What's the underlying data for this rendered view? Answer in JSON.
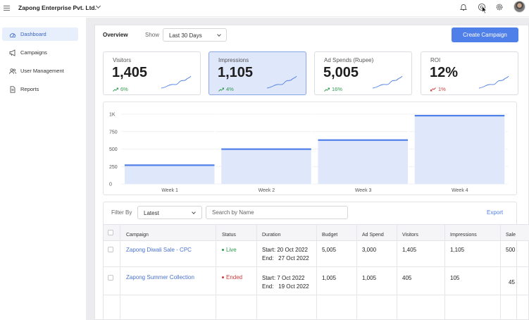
{
  "header": {
    "company": "Zapong Enterprise Pvt. Ltd."
  },
  "sidebar": {
    "items": [
      {
        "label": "Dashboard",
        "icon": "dashboard-gauge-icon",
        "active": true
      },
      {
        "label": "Campaigns",
        "icon": "megaphone-icon",
        "active": false
      },
      {
        "label": "User Management",
        "icon": "users-icon",
        "active": false
      },
      {
        "label": "Reports",
        "icon": "document-icon",
        "active": false
      }
    ]
  },
  "toolbar": {
    "tab": "Overview",
    "show_label": "Show",
    "period": "Last 30 Days",
    "create_button": "Create Campaign"
  },
  "stats": [
    {
      "label": "Visitors",
      "value": "1,405",
      "delta": "6%",
      "trend": "up"
    },
    {
      "label": "Impressions",
      "value": "1,105",
      "delta": "4%",
      "trend": "up",
      "selected": true
    },
    {
      "label": "Ad Spends (Rupee)",
      "value": "5,005",
      "delta": "16%",
      "trend": "up"
    },
    {
      "label": "ROI",
      "value": "12%",
      "delta": "1%",
      "trend": "down"
    }
  ],
  "chart_data": {
    "type": "bar",
    "categories": [
      "Week 1",
      "Week 2",
      "Week 3",
      "Week 4"
    ],
    "values": [
      270,
      500,
      630,
      980
    ],
    "yticks": [
      "0",
      "250",
      "500",
      "750",
      "1K"
    ],
    "ylim": [
      0,
      1000
    ],
    "grid": true,
    "bar_color": "#dfe7fb",
    "bar_top_color": "#4f7fe8"
  },
  "filters": {
    "filter_label": "Filter By",
    "filter_value": "Latest",
    "search_placeholder": "Search by Name",
    "export": "Export"
  },
  "table": {
    "columns": [
      "Campaign",
      "Status",
      "Duration",
      "Budget",
      "Ad Spend",
      "Visitors",
      "Impressions",
      "Sale"
    ],
    "rows": [
      {
        "campaign": "Zapong Diwali Sale - CPC",
        "status": "Live",
        "start": "Start: 20 Oct 2022",
        "end": "End:   27 Oct 2022",
        "budget": "5,005",
        "ad_spend": "3,000",
        "visitors": "1,405",
        "impressions": "1,105",
        "sale": "500"
      },
      {
        "campaign": "Zapong Summer Collection",
        "status": "Ended",
        "start": "Start: 7 Oct 2022",
        "end": "End:   19 Oct 2022",
        "budget": "1,005",
        "ad_spend": "1,005",
        "visitors": "405",
        "impressions": "105",
        "sale": "45"
      }
    ]
  },
  "colors": {
    "accent": "#4f7fe8",
    "positive": "#2e9a4d",
    "negative": "#d23a3a"
  }
}
